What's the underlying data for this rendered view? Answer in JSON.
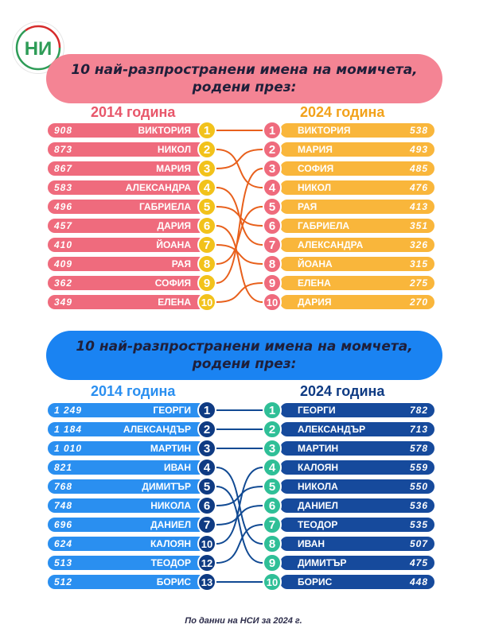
{
  "logo": {
    "text": "НИ",
    "name": "nsi-logo"
  },
  "girls": {
    "title_line1": "10 най-разпространени имена на момичета,",
    "title_line2": "родени през:",
    "year_left": "2014 година",
    "year_right": "2024 година",
    "left": [
      {
        "count": "908",
        "name": "ВИКТОРИЯ",
        "rank": "1"
      },
      {
        "count": "873",
        "name": "НИКОЛ",
        "rank": "2"
      },
      {
        "count": "867",
        "name": "МАРИЯ",
        "rank": "3"
      },
      {
        "count": "583",
        "name": "АЛЕКСАНДРА",
        "rank": "4"
      },
      {
        "count": "496",
        "name": "ГАБРИЕЛА",
        "rank": "5"
      },
      {
        "count": "457",
        "name": "ДАРИЯ",
        "rank": "6"
      },
      {
        "count": "410",
        "name": "ЙОАНА",
        "rank": "7"
      },
      {
        "count": "409",
        "name": "РАЯ",
        "rank": "8"
      },
      {
        "count": "362",
        "name": "СОФИЯ",
        "rank": "9"
      },
      {
        "count": "349",
        "name": "ЕЛЕНА",
        "rank": "10"
      }
    ],
    "right": [
      {
        "count": "538",
        "name": "ВИКТОРИЯ",
        "rank": "1"
      },
      {
        "count": "493",
        "name": "МАРИЯ",
        "rank": "2"
      },
      {
        "count": "485",
        "name": "СОФИЯ",
        "rank": "3"
      },
      {
        "count": "476",
        "name": "НИКОЛ",
        "rank": "4"
      },
      {
        "count": "413",
        "name": "РАЯ",
        "rank": "5"
      },
      {
        "count": "351",
        "name": "ГАБРИЕЛА",
        "rank": "6"
      },
      {
        "count": "326",
        "name": "АЛЕКСАНДРА",
        "rank": "7"
      },
      {
        "count": "315",
        "name": "ЙОАНА",
        "rank": "8"
      },
      {
        "count": "275",
        "name": "ЕЛЕНА",
        "rank": "9"
      },
      {
        "count": "270",
        "name": "ДАРИЯ",
        "rank": "10"
      }
    ],
    "links": [
      [
        1,
        1
      ],
      [
        2,
        4
      ],
      [
        3,
        2
      ],
      [
        4,
        7
      ],
      [
        5,
        6
      ],
      [
        6,
        10
      ],
      [
        7,
        8
      ],
      [
        8,
        5
      ],
      [
        9,
        3
      ],
      [
        10,
        9
      ]
    ]
  },
  "boys": {
    "title_line1": "10 най-разпространени имена на момчета,",
    "title_line2": "родени през:",
    "year_left": "2014 година",
    "year_right": "2024 година",
    "left": [
      {
        "count": "1 249",
        "name": "ГЕОРГИ",
        "rank": "1"
      },
      {
        "count": "1 184",
        "name": "АЛЕКСАНДЪР",
        "rank": "2"
      },
      {
        "count": "1 010",
        "name": "МАРТИН",
        "rank": "3"
      },
      {
        "count": "821",
        "name": "ИВАН",
        "rank": "4"
      },
      {
        "count": "768",
        "name": "ДИМИТЪР",
        "rank": "5"
      },
      {
        "count": "748",
        "name": "НИКОЛА",
        "rank": "6"
      },
      {
        "count": "696",
        "name": "ДАНИЕЛ",
        "rank": "7"
      },
      {
        "count": "624",
        "name": "КАЛОЯН",
        "rank": "10"
      },
      {
        "count": "513",
        "name": "ТЕОДОР",
        "rank": "12"
      },
      {
        "count": "512",
        "name": "БОРИС",
        "rank": "13"
      }
    ],
    "right": [
      {
        "count": "782",
        "name": "ГЕОРГИ",
        "rank": "1"
      },
      {
        "count": "713",
        "name": "АЛЕКСАНДЪР",
        "rank": "2"
      },
      {
        "count": "578",
        "name": "МАРТИН",
        "rank": "3"
      },
      {
        "count": "559",
        "name": "КАЛОЯН",
        "rank": "4"
      },
      {
        "count": "550",
        "name": "НИКОЛА",
        "rank": "5"
      },
      {
        "count": "536",
        "name": "ДАНИЕЛ",
        "rank": "6"
      },
      {
        "count": "535",
        "name": "ТЕОДОР",
        "rank": "7"
      },
      {
        "count": "507",
        "name": "ИВАН",
        "rank": "8"
      },
      {
        "count": "475",
        "name": "ДИМИТЪР",
        "rank": "9"
      },
      {
        "count": "448",
        "name": "БОРИС",
        "rank": "10"
      }
    ],
    "links": [
      [
        1,
        1
      ],
      [
        2,
        2
      ],
      [
        3,
        3
      ],
      [
        4,
        8
      ],
      [
        5,
        9
      ],
      [
        6,
        5
      ],
      [
        7,
        6
      ],
      [
        8,
        4
      ],
      [
        9,
        7
      ],
      [
        10,
        10
      ]
    ]
  },
  "colors": {
    "girls_left_row": "#ef6b7d",
    "girls_left_badge": "#f2c21b",
    "girls_right_row": "#f9b63b",
    "girls_right_badge": "#ef6b7d",
    "girls_line": "#e8601c",
    "girls_year_left": "#e8576b",
    "girls_year_right": "#f2a21b",
    "boys_left_row": "#2a8ff0",
    "boys_left_badge": "#0f3b83",
    "boys_right_row": "#164a9c",
    "boys_right_badge": "#2fbf97",
    "boys_line": "#114a93",
    "boys_year_left": "#2a8ff0",
    "boys_year_right": "#0f3b83",
    "logo_green": "#2e9c57",
    "logo_red": "#d62b2b"
  },
  "footnote": "По данни на НСИ за 2024 г."
}
